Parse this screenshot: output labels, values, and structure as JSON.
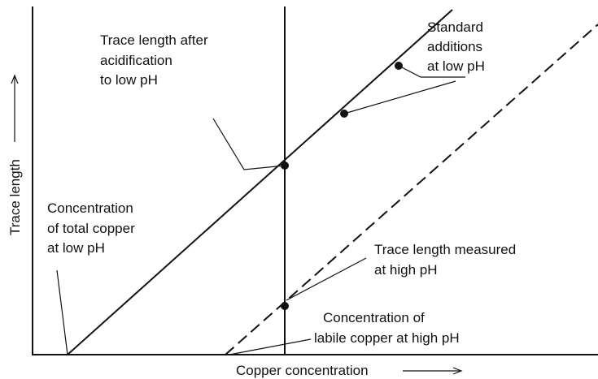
{
  "x_axis_label": "Copper concentration",
  "y_axis_label": "Trace length",
  "annotations": [
    {
      "lines": [
        "Trace length after",
        "acidification",
        "to low pH"
      ]
    },
    {
      "lines": [
        "Standard",
        "additions",
        "at low pH"
      ]
    },
    {
      "lines": [
        "Concentration",
        "of total copper",
        "at low pH"
      ]
    },
    {
      "lines": [
        "Trace length measured",
        "at high pH"
      ]
    },
    {
      "lines": [
        "Concentration of",
        "labile copper at high pH"
      ]
    }
  ]
}
